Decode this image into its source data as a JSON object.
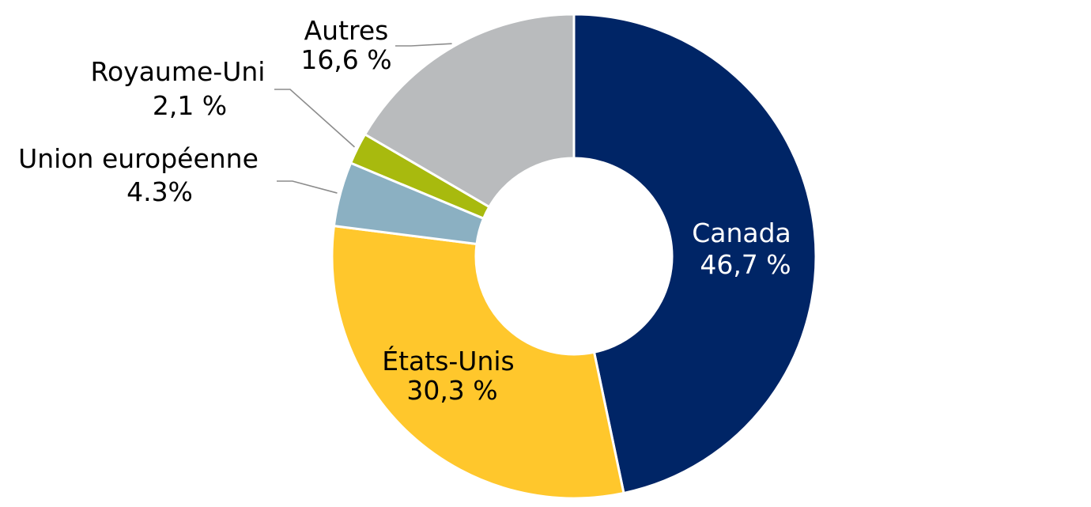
{
  "chart_data": {
    "type": "pie",
    "donut": true,
    "title": "",
    "categories": [
      "Canada",
      "États-Unis",
      "Union européenne",
      "Royaume-Uni",
      "Autres"
    ],
    "values": [
      46.7,
      30.3,
      4.3,
      2.1,
      16.6
    ],
    "value_labels": [
      "46,7 %",
      "30,3 %",
      "4.3%",
      "2,1 %",
      "16,6 %"
    ],
    "colors": [
      "#002566",
      "#FFC72C",
      "#8BB0C2",
      "#A8BA0E",
      "#B9BBBD"
    ],
    "start_angle_deg": 0,
    "direction": "clockwise",
    "legend": "none"
  }
}
